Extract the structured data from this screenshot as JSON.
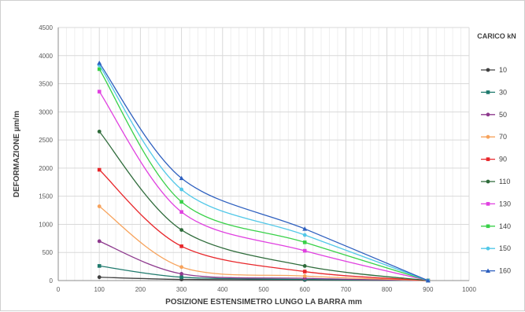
{
  "chart_data": {
    "type": "line",
    "title": "",
    "xlabel": "POSIZIONE ESTENSIMETRO LUNGO LA BARRA mm",
    "ylabel": "DEFORMAZIONE µm/m",
    "xlim": [
      0,
      1000
    ],
    "ylim": [
      0,
      4500
    ],
    "xticks": [
      0,
      100,
      200,
      300,
      400,
      500,
      600,
      700,
      800,
      900,
      1000
    ],
    "yticks": [
      0,
      500,
      1000,
      1500,
      2000,
      2500,
      3000,
      3500,
      4000,
      4500
    ],
    "grid": true,
    "legend_title": "CARICO kN",
    "legend_position": "right",
    "x": [
      100,
      300,
      600,
      900
    ],
    "series": [
      {
        "name": "10",
        "color": "#404040",
        "marker": "circle",
        "values": [
          60,
          20,
          10,
          0
        ]
      },
      {
        "name": "30",
        "color": "#1f7a6d",
        "marker": "square",
        "values": [
          260,
          60,
          20,
          0
        ]
      },
      {
        "name": "50",
        "color": "#8e3a8e",
        "marker": "circle",
        "values": [
          700,
          120,
          40,
          0
        ]
      },
      {
        "name": "70",
        "color": "#f7a35c",
        "marker": "circle",
        "values": [
          1320,
          240,
          80,
          0
        ]
      },
      {
        "name": "90",
        "color": "#e8262a",
        "marker": "square",
        "values": [
          1970,
          610,
          160,
          0
        ]
      },
      {
        "name": "110",
        "color": "#2e6b3a",
        "marker": "circle",
        "values": [
          2650,
          900,
          260,
          0
        ]
      },
      {
        "name": "130",
        "color": "#e040e0",
        "marker": "square",
        "values": [
          3360,
          1220,
          530,
          0
        ]
      },
      {
        "name": "140",
        "color": "#38d148",
        "marker": "square",
        "values": [
          3760,
          1400,
          680,
          0
        ]
      },
      {
        "name": "150",
        "color": "#52c8e8",
        "marker": "circle",
        "values": [
          3830,
          1620,
          810,
          0
        ]
      },
      {
        "name": "160",
        "color": "#2d5fbf",
        "marker": "triangle",
        "values": [
          3870,
          1820,
          920,
          0
        ]
      }
    ]
  }
}
